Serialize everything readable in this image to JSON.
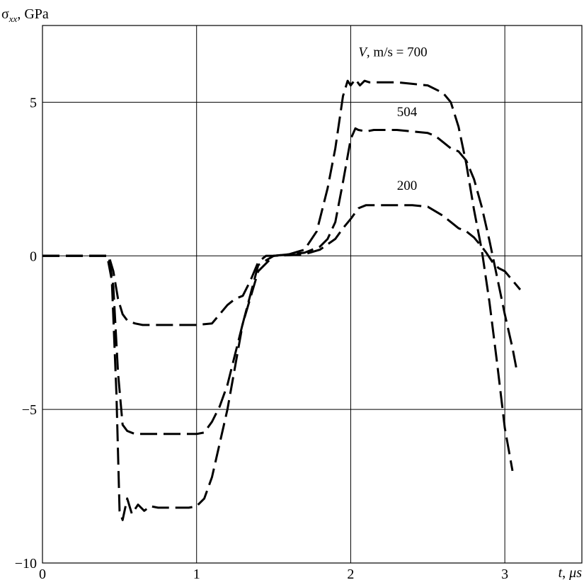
{
  "chart_data": {
    "type": "line",
    "title": "",
    "ylabel": {
      "main": "σ",
      "sub": "xx",
      "rest": ", GPa"
    },
    "xlabel": {
      "var": "t",
      "sep": ", ",
      "unit": "μs"
    },
    "xlim": [
      0,
      3.5
    ],
    "ylim": [
      -10,
      7.5
    ],
    "xticks": [
      0,
      1,
      2,
      3
    ],
    "xtick_labels": [
      "0",
      "1",
      "2",
      "3"
    ],
    "yticks": [
      5,
      0,
      -5,
      -10
    ],
    "ytick_labels": [
      "5",
      "0",
      "−5",
      "−10"
    ],
    "grid": true,
    "legend": "none",
    "annotations": [
      {
        "prefix": "V",
        "text": ", m/s = 700",
        "x": 2.05,
        "y": 6.5
      },
      {
        "prefix": "",
        "text": "504",
        "x": 2.3,
        "y": 4.55
      },
      {
        "prefix": "",
        "text": "200",
        "x": 2.3,
        "y": 2.15
      }
    ],
    "series": [
      {
        "value": 700,
        "x": [
          0,
          0.35,
          0.42,
          0.45,
          0.48,
          0.5,
          0.52,
          0.55,
          0.58,
          0.62,
          0.66,
          0.7,
          0.75,
          0.85,
          0.95,
          1.0,
          1.05,
          1.1,
          1.2,
          1.3,
          1.4,
          1.5,
          1.6,
          1.7,
          1.78,
          1.85,
          1.9,
          1.95,
          1.98,
          2.0,
          2.03,
          2.06,
          2.09,
          2.12,
          2.2,
          2.3,
          2.4,
          2.5,
          2.6,
          2.65,
          2.7,
          2.75,
          2.8,
          2.85,
          2.9,
          2.95,
          3.0,
          3.05
        ],
        "y": [
          0,
          0,
          0,
          -0.8,
          -4.5,
          -8.3,
          -8.6,
          -7.9,
          -8.4,
          -8.1,
          -8.3,
          -8.15,
          -8.2,
          -8.2,
          -8.2,
          -8.15,
          -7.9,
          -7.2,
          -5.0,
          -2.2,
          -0.3,
          0,
          0.05,
          0.2,
          0.8,
          2.2,
          3.5,
          5.2,
          5.7,
          5.55,
          5.75,
          5.55,
          5.7,
          5.65,
          5.65,
          5.65,
          5.6,
          5.55,
          5.3,
          5.0,
          4.2,
          3.0,
          1.5,
          0.2,
          -1.5,
          -3.5,
          -5.6,
          -7.0
        ]
      },
      {
        "value": 504,
        "x": [
          0,
          0.35,
          0.43,
          0.46,
          0.49,
          0.52,
          0.55,
          0.6,
          0.65,
          0.7,
          0.8,
          0.9,
          1.0,
          1.05,
          1.1,
          1.15,
          1.2,
          1.3,
          1.4,
          1.5,
          1.6,
          1.7,
          1.8,
          1.85,
          1.9,
          1.95,
          2.0,
          2.03,
          2.05,
          2.1,
          2.15,
          2.2,
          2.3,
          2.4,
          2.5,
          2.55,
          2.6,
          2.65,
          2.7,
          2.75,
          2.8,
          2.85,
          2.9,
          2.95,
          3.0,
          3.05,
          3.08
        ],
        "y": [
          0,
          0,
          0,
          -1.0,
          -3.8,
          -5.5,
          -5.7,
          -5.8,
          -5.8,
          -5.8,
          -5.8,
          -5.8,
          -5.8,
          -5.75,
          -5.4,
          -4.9,
          -4.2,
          -2.2,
          -0.5,
          0,
          0.05,
          0.1,
          0.3,
          0.55,
          1.1,
          2.4,
          3.8,
          4.15,
          4.1,
          4.05,
          4.1,
          4.1,
          4.1,
          4.05,
          4.0,
          3.9,
          3.7,
          3.5,
          3.4,
          3.1,
          2.5,
          1.6,
          0.5,
          -0.7,
          -1.9,
          -3.0,
          -3.8
        ]
      },
      {
        "value": 200,
        "x": [
          0,
          0.35,
          0.43,
          0.46,
          0.49,
          0.52,
          0.55,
          0.6,
          0.65,
          0.7,
          0.8,
          0.9,
          1.0,
          1.1,
          1.15,
          1.2,
          1.25,
          1.3,
          1.35,
          1.4,
          1.45,
          1.5,
          1.6,
          1.7,
          1.8,
          1.9,
          1.95,
          2.0,
          2.05,
          2.1,
          2.2,
          2.3,
          2.4,
          2.5,
          2.6,
          2.65,
          2.7,
          2.75,
          2.8,
          2.85,
          2.88,
          2.92,
          2.96,
          3.0,
          3.05,
          3.1
        ],
        "y": [
          0,
          0,
          0,
          -0.5,
          -1.4,
          -1.9,
          -2.1,
          -2.2,
          -2.25,
          -2.25,
          -2.25,
          -2.25,
          -2.25,
          -2.2,
          -1.9,
          -1.6,
          -1.4,
          -1.3,
          -0.8,
          -0.2,
          0,
          0,
          0.02,
          0.05,
          0.2,
          0.55,
          0.9,
          1.2,
          1.55,
          1.65,
          1.65,
          1.65,
          1.65,
          1.6,
          1.3,
          1.1,
          0.9,
          0.8,
          0.6,
          0.3,
          0.1,
          -0.2,
          -0.4,
          -0.5,
          -0.8,
          -1.1
        ]
      }
    ]
  }
}
